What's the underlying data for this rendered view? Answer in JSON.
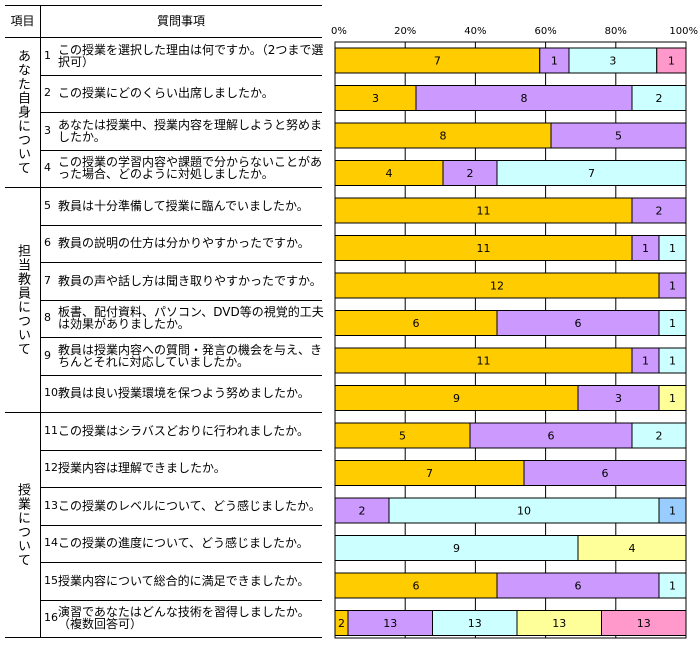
{
  "table": {
    "header_category": "項目",
    "header_question": "質問事項",
    "groups": [
      {
        "label": "あなた自身について",
        "rows": [
          1,
          4
        ]
      },
      {
        "label": "担当教員について",
        "rows": [
          5,
          10
        ]
      },
      {
        "label": "授業について",
        "rows": [
          11,
          16
        ]
      }
    ],
    "questions": [
      {
        "num": "1",
        "text": "この授業を選択した理由は何ですか。（2つまで選択可）"
      },
      {
        "num": "2",
        "text": "この授業にどのくらい出席しましたか。"
      },
      {
        "num": "3",
        "text": "あなたは授業中、授業内容を理解しようと努めましたか。"
      },
      {
        "num": "4",
        "text": "この授業の学習内容や課題で分からないことがあった場合、どのように対処しましたか。"
      },
      {
        "num": "5",
        "text": "教員は十分準備して授業に臨んでいましたか。"
      },
      {
        "num": "6",
        "text": "教員の説明の仕方は分かりやすかったですか。"
      },
      {
        "num": "7",
        "text": "教員の声や話し方は聞き取りやすかったですか。"
      },
      {
        "num": "8",
        "text": "板書、配付資料、パソコン、DVD等の視覚的工夫は効果がありましたか。"
      },
      {
        "num": "9",
        "text": "教員は授業内容への質問・発言の機会を与え、きちんとそれに対応していましたか。"
      },
      {
        "num": "10",
        "text": "教員は良い授業環境を保つよう努めましたか。"
      },
      {
        "num": "11",
        "text": "この授業はシラバスどおりに行われましたか。"
      },
      {
        "num": "12",
        "text": "授業内容は理解できましたか。"
      },
      {
        "num": "13",
        "text": "この授業のレベルについて、どう感じましたか。"
      },
      {
        "num": "14",
        "text": "この授業の進度について、どう感じましたか。"
      },
      {
        "num": "15",
        "text": "授業内容について総合的に満足できましたか。"
      },
      {
        "num": "16",
        "text": "演習であなたはどんな技術を習得しましたか。（複数回答可）"
      }
    ]
  },
  "chart_data": {
    "type": "bar",
    "orientation": "horizontal",
    "stacked": "100%",
    "xlim": [
      0,
      100
    ],
    "x_ticks": [
      "0%",
      "20%",
      "40%",
      "60%",
      "80%",
      "100%"
    ],
    "grid": true,
    "colors": {
      "orange": "#ffcc00",
      "purple": "#cc99ff",
      "cyan": "#ccffff",
      "yellow": "#ffff99",
      "pink": "#ff99cc",
      "blue": "#99ccff"
    },
    "bars": [
      {
        "question": "1",
        "segments": [
          {
            "value": 7,
            "color": "orange"
          },
          {
            "value": 1,
            "color": "purple"
          },
          {
            "value": 3,
            "color": "cyan"
          },
          {
            "value": 1,
            "color": "pink"
          }
        ]
      },
      {
        "question": "2",
        "segments": [
          {
            "value": 3,
            "color": "orange"
          },
          {
            "value": 8,
            "color": "purple"
          },
          {
            "value": 2,
            "color": "cyan"
          }
        ]
      },
      {
        "question": "3",
        "segments": [
          {
            "value": 8,
            "color": "orange"
          },
          {
            "value": 5,
            "color": "purple"
          }
        ]
      },
      {
        "question": "4",
        "segments": [
          {
            "value": 4,
            "color": "orange"
          },
          {
            "value": 2,
            "color": "purple"
          },
          {
            "value": 7,
            "color": "cyan"
          }
        ]
      },
      {
        "question": "5",
        "segments": [
          {
            "value": 11,
            "color": "orange"
          },
          {
            "value": 2,
            "color": "purple"
          }
        ]
      },
      {
        "question": "6",
        "segments": [
          {
            "value": 11,
            "color": "orange"
          },
          {
            "value": 1,
            "color": "purple"
          },
          {
            "value": 1,
            "color": "cyan"
          }
        ]
      },
      {
        "question": "7",
        "segments": [
          {
            "value": 12,
            "color": "orange"
          },
          {
            "value": 1,
            "color": "purple"
          }
        ]
      },
      {
        "question": "8",
        "segments": [
          {
            "value": 6,
            "color": "orange"
          },
          {
            "value": 6,
            "color": "purple"
          },
          {
            "value": 1,
            "color": "cyan"
          }
        ]
      },
      {
        "question": "9",
        "segments": [
          {
            "value": 11,
            "color": "orange"
          },
          {
            "value": 1,
            "color": "purple"
          },
          {
            "value": 1,
            "color": "cyan"
          }
        ]
      },
      {
        "question": "10",
        "segments": [
          {
            "value": 9,
            "color": "orange"
          },
          {
            "value": 3,
            "color": "purple"
          },
          {
            "value": 1,
            "color": "yellow"
          }
        ]
      },
      {
        "question": "11",
        "segments": [
          {
            "value": 5,
            "color": "orange"
          },
          {
            "value": 6,
            "color": "purple"
          },
          {
            "value": 2,
            "color": "cyan"
          }
        ]
      },
      {
        "question": "12",
        "segments": [
          {
            "value": 7,
            "color": "orange"
          },
          {
            "value": 6,
            "color": "purple"
          }
        ]
      },
      {
        "question": "13",
        "segments": [
          {
            "value": 2,
            "color": "purple"
          },
          {
            "value": 10,
            "color": "cyan"
          },
          {
            "value": 1,
            "color": "blue"
          }
        ]
      },
      {
        "question": "14",
        "segments": [
          {
            "value": 9,
            "color": "cyan"
          },
          {
            "value": 4,
            "color": "yellow"
          }
        ]
      },
      {
        "question": "15",
        "segments": [
          {
            "value": 6,
            "color": "orange"
          },
          {
            "value": 6,
            "color": "purple"
          },
          {
            "value": 1,
            "color": "cyan"
          }
        ]
      },
      {
        "question": "16",
        "segments": [
          {
            "value": 2,
            "color": "orange"
          },
          {
            "value": 13,
            "color": "purple"
          },
          {
            "value": 13,
            "color": "cyan"
          },
          {
            "value": 13,
            "color": "yellow"
          },
          {
            "value": 13,
            "color": "pink"
          }
        ]
      }
    ]
  }
}
